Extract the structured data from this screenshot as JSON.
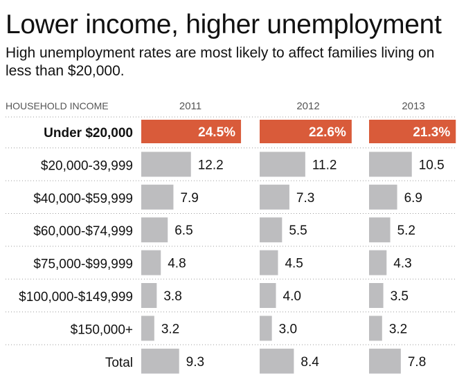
{
  "title": "Lower income, higher unemployment",
  "subtitle": "High unemployment rates are most likely to affect families living on less than $20,000.",
  "chart_data": {
    "type": "bar",
    "row_header": "HOUSEHOLD INCOME",
    "categories": [
      "Under $20,000",
      "$20,000-39,999",
      "$40,000-$59,999",
      "$60,000-$74,999",
      "$75,000-$99,999",
      "$100,000-$149,999",
      "$150,000+",
      "Total"
    ],
    "series": [
      {
        "name": "2011",
        "values": [
          24.5,
          12.2,
          7.9,
          6.5,
          4.8,
          3.8,
          3.2,
          9.3
        ],
        "labels": [
          "24.5%",
          "12.2",
          "7.9",
          "6.5",
          "4.8",
          "3.8",
          "3.2",
          "9.3"
        ]
      },
      {
        "name": "2012",
        "values": [
          22.6,
          11.2,
          7.3,
          5.5,
          4.5,
          4.0,
          3.0,
          8.4
        ],
        "labels": [
          "22.6%",
          "11.2",
          "7.3",
          "5.5",
          "4.5",
          "4.0",
          "3.0",
          "8.4"
        ]
      },
      {
        "name": "2013",
        "values": [
          21.3,
          10.5,
          6.9,
          5.2,
          4.3,
          3.5,
          3.2,
          7.8
        ],
        "labels": [
          "21.3%",
          "10.5",
          "6.9",
          "5.2",
          "4.3",
          "3.5",
          "3.2",
          "7.8"
        ]
      }
    ],
    "highlight_category": "Under $20,000",
    "colors": {
      "highlight": "#d95b3a",
      "bar": "#bdbdbf",
      "divider": "#9a9a9a",
      "header_text": "#555555"
    }
  }
}
